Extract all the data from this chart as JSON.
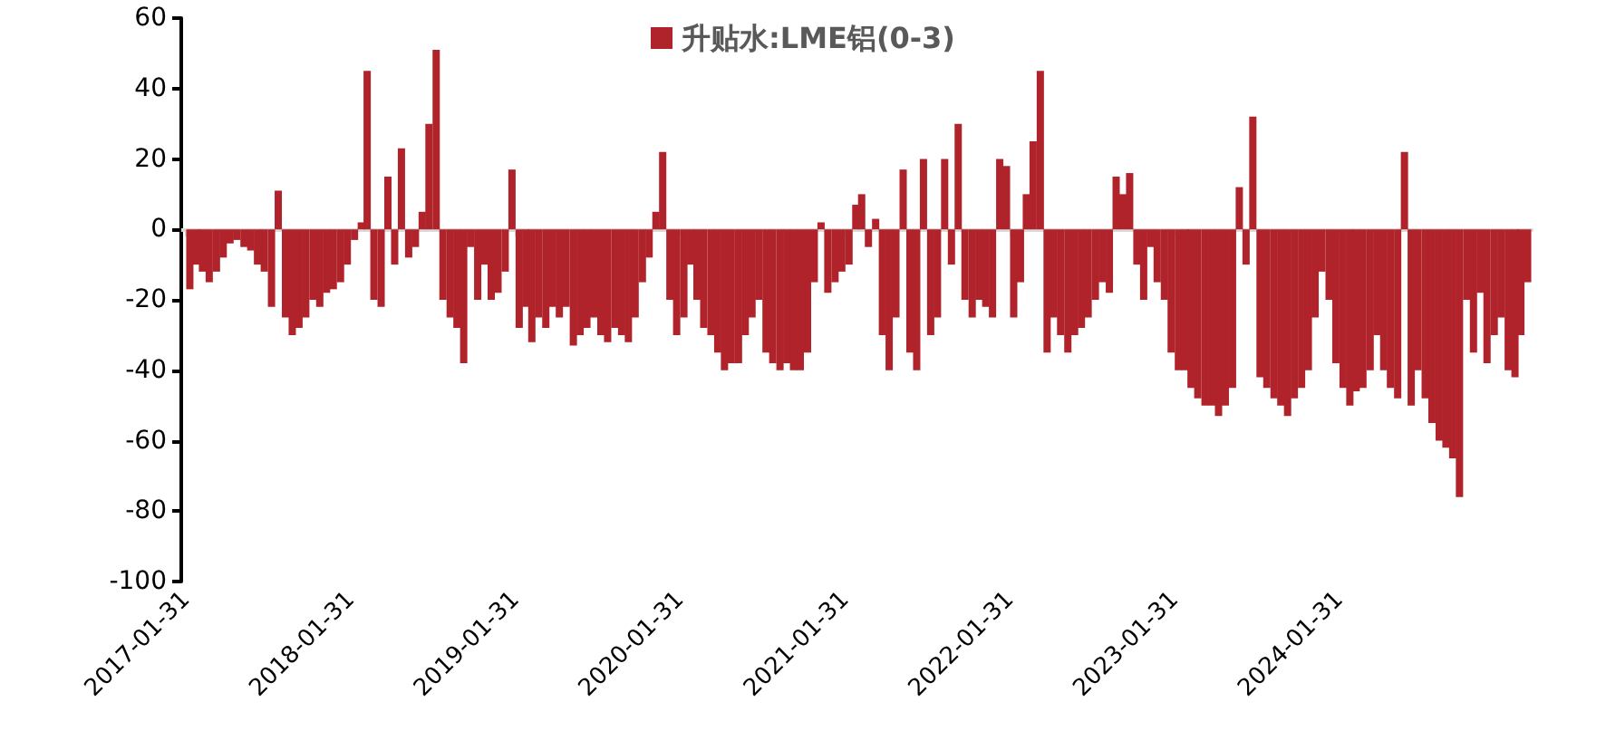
{
  "chart_data": {
    "type": "bar",
    "legend": "top",
    "xlim": [
      "2017-01-20",
      "2025-04-01"
    ],
    "xticks": [
      "2017-01-31",
      "2018-01-31",
      "2019-01-31",
      "2020-01-31",
      "2021-01-31",
      "2022-01-31",
      "2023-01-31",
      "2024-01-31"
    ],
    "ylim": [
      -100,
      60
    ],
    "yticks": [
      -100,
      -80,
      -60,
      -40,
      -20,
      0,
      20,
      40,
      60
    ],
    "x": [
      "2017-02-08",
      "2017-02-23",
      "2017-03-08",
      "2017-03-23",
      "2017-04-08",
      "2017-04-23",
      "2017-05-08",
      "2017-05-23",
      "2017-06-08",
      "2017-06-23",
      "2017-07-08",
      "2017-07-23",
      "2017-08-08",
      "2017-08-23",
      "2017-09-08",
      "2017-09-23",
      "2017-10-08",
      "2017-10-23",
      "2017-11-08",
      "2017-11-23",
      "2017-12-08",
      "2017-12-23",
      "2018-01-08",
      "2018-01-23",
      "2018-02-08",
      "2018-02-23",
      "2018-03-08",
      "2018-03-23",
      "2018-04-08",
      "2018-04-23",
      "2018-05-08",
      "2018-05-23",
      "2018-06-08",
      "2018-06-23",
      "2018-07-08",
      "2018-07-23",
      "2018-08-08",
      "2018-08-23",
      "2018-09-08",
      "2018-09-23",
      "2018-10-08",
      "2018-10-23",
      "2018-11-08",
      "2018-11-23",
      "2018-12-08",
      "2018-12-23",
      "2019-01-08",
      "2019-01-23",
      "2019-02-08",
      "2019-02-23",
      "2019-03-08",
      "2019-03-23",
      "2019-04-08",
      "2019-04-23",
      "2019-05-08",
      "2019-05-23",
      "2019-06-08",
      "2019-06-23",
      "2019-07-08",
      "2019-07-23",
      "2019-08-08",
      "2019-08-23",
      "2019-09-08",
      "2019-09-23",
      "2019-10-08",
      "2019-10-23",
      "2019-11-08",
      "2019-11-23",
      "2019-12-08",
      "2019-12-23",
      "2020-01-08",
      "2020-01-23",
      "2020-02-08",
      "2020-02-23",
      "2020-03-08",
      "2020-03-23",
      "2020-04-08",
      "2020-04-23",
      "2020-05-08",
      "2020-05-23",
      "2020-06-08",
      "2020-06-23",
      "2020-07-08",
      "2020-07-23",
      "2020-08-08",
      "2020-08-23",
      "2020-09-08",
      "2020-09-23",
      "2020-10-08",
      "2020-10-23",
      "2020-11-08",
      "2020-11-23",
      "2020-12-08",
      "2020-12-23",
      "2021-01-08",
      "2021-01-23",
      "2021-02-08",
      "2021-02-23",
      "2021-03-08",
      "2021-03-23",
      "2021-04-08",
      "2021-04-23",
      "2021-05-08",
      "2021-05-23",
      "2021-06-08",
      "2021-06-23",
      "2021-07-08",
      "2021-07-23",
      "2021-08-08",
      "2021-08-23",
      "2021-09-08",
      "2021-09-23",
      "2021-10-08",
      "2021-10-23",
      "2021-11-08",
      "2021-11-23",
      "2021-12-08",
      "2021-12-23",
      "2022-01-08",
      "2022-01-23",
      "2022-02-08",
      "2022-02-23",
      "2022-03-08",
      "2022-03-23",
      "2022-04-08",
      "2022-04-23",
      "2022-05-08",
      "2022-05-23",
      "2022-06-08",
      "2022-06-23",
      "2022-07-08",
      "2022-07-23",
      "2022-08-08",
      "2022-08-23",
      "2022-09-08",
      "2022-09-23",
      "2022-10-08",
      "2022-10-23",
      "2022-11-08",
      "2022-11-23",
      "2022-12-08",
      "2022-12-23",
      "2023-01-08",
      "2023-01-23",
      "2023-02-08",
      "2023-02-23",
      "2023-03-08",
      "2023-03-23",
      "2023-04-08",
      "2023-04-23",
      "2023-05-08",
      "2023-05-23",
      "2023-06-08",
      "2023-06-23",
      "2023-07-08",
      "2023-07-23",
      "2023-08-08",
      "2023-08-23",
      "2023-09-08",
      "2023-09-23",
      "2023-10-08",
      "2023-10-23",
      "2023-11-08",
      "2023-11-23",
      "2023-12-08",
      "2023-12-23",
      "2024-01-08",
      "2024-01-23",
      "2024-02-08",
      "2024-02-23",
      "2024-03-08",
      "2024-03-23",
      "2024-04-08",
      "2024-04-23",
      "2024-05-08",
      "2024-05-23",
      "2024-06-08",
      "2024-06-23",
      "2024-07-08",
      "2024-07-23",
      "2024-08-08",
      "2024-08-23",
      "2024-09-08",
      "2024-09-23",
      "2024-10-08",
      "2024-10-23",
      "2024-11-08",
      "2024-11-23",
      "2024-12-08",
      "2024-12-23",
      "2025-01-08",
      "2025-01-23",
      "2025-02-08",
      "2025-02-23",
      "2025-03-08",
      "2025-03-23"
    ],
    "series": [
      {
        "name": "升贴水:LME铝(0-3)",
        "color": "#b0232a",
        "values": [
          -17,
          -10,
          -12,
          -15,
          -12,
          -8,
          -4,
          -3,
          -5,
          -6,
          -10,
          -12,
          -22,
          11,
          -25,
          -30,
          -28,
          -25,
          -20,
          -22,
          -18,
          -17,
          -15,
          -10,
          -3,
          2,
          45,
          -20,
          -22,
          15,
          -10,
          23,
          -8,
          -5,
          5,
          30,
          51,
          -20,
          -25,
          -28,
          -38,
          -5,
          -20,
          -10,
          -20,
          -18,
          -12,
          17,
          -28,
          -22,
          -32,
          -25,
          -28,
          -22,
          -25,
          -22,
          -33,
          -30,
          -28,
          -25,
          -30,
          -32,
          -28,
          -30,
          -32,
          -25,
          -15,
          -8,
          5,
          22,
          -20,
          -30,
          -25,
          -10,
          -20,
          -28,
          -30,
          -35,
          -40,
          -38,
          -38,
          -30,
          -25,
          -20,
          -35,
          -38,
          -40,
          -38,
          -40,
          -40,
          -35,
          -15,
          2,
          -18,
          -15,
          -12,
          -10,
          7,
          10,
          -5,
          3,
          -30,
          -40,
          -25,
          17,
          -35,
          -40,
          20,
          -30,
          -25,
          20,
          -10,
          30,
          -20,
          -25,
          -20,
          -22,
          -25,
          20,
          18,
          -25,
          -15,
          10,
          25,
          45,
          -35,
          -25,
          -30,
          -35,
          -30,
          -28,
          -25,
          -20,
          -15,
          -18,
          15,
          10,
          16,
          -10,
          -20,
          -5,
          -15,
          -20,
          -35,
          -40,
          -40,
          -45,
          -48,
          -50,
          -50,
          -53,
          -50,
          -45,
          12,
          -10,
          32,
          -42,
          -45,
          -48,
          -50,
          -53,
          -48,
          -45,
          -40,
          -25,
          -12,
          -20,
          -38,
          -45,
          -50,
          -46,
          -45,
          -40,
          -30,
          -40,
          -45,
          -48,
          22,
          -50,
          -40,
          -48,
          -55,
          -60,
          -62,
          -65,
          -76,
          -20,
          -35,
          -18,
          -38,
          -30,
          -25,
          -40,
          -42,
          -30,
          -15
        ]
      }
    ]
  }
}
